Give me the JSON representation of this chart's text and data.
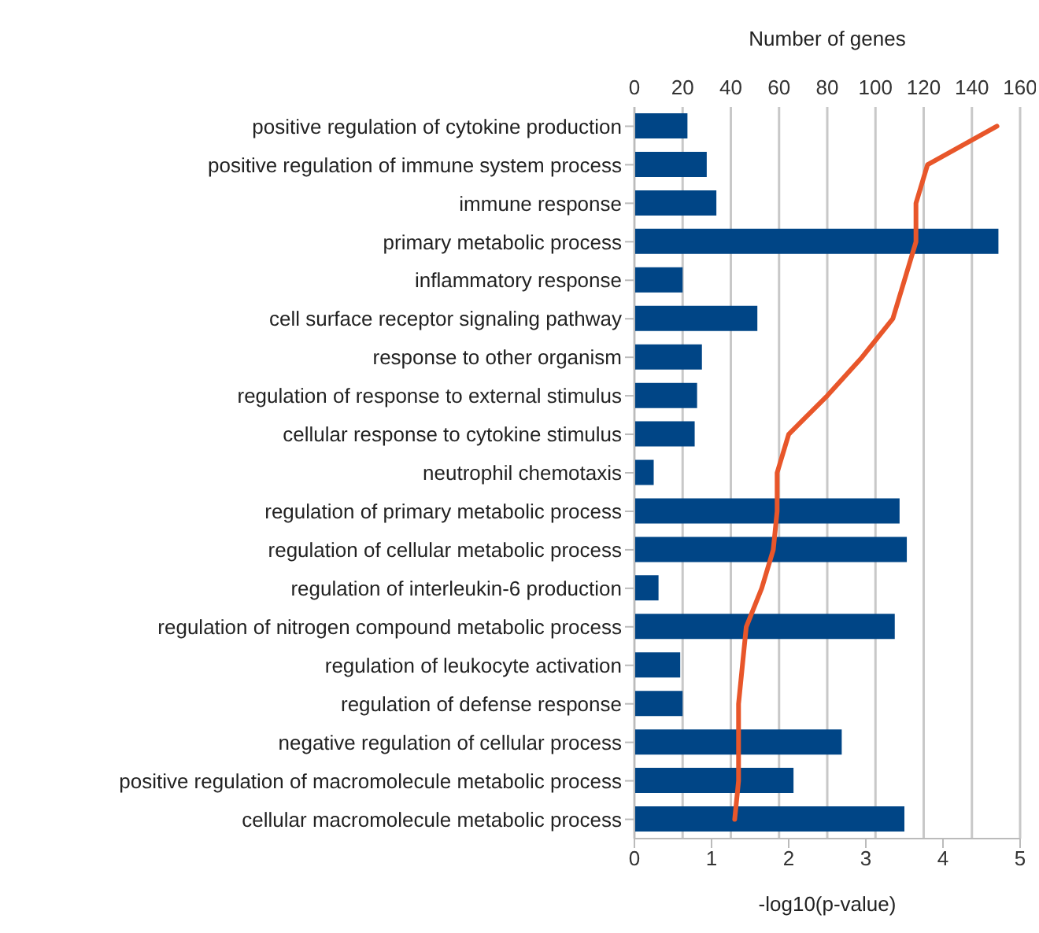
{
  "chart_data": {
    "type": "bar",
    "orientation": "horizontal",
    "xlabel": "-log10(p-value)",
    "x2label": "Number of genes",
    "categories": [
      "positive regulation of cytokine production",
      "positive regulation of immune system process",
      "immune response",
      "primary metabolic process",
      "inflammatory response",
      "cell surface receptor signaling pathway",
      "response to other organism",
      "regulation of response to external stimulus",
      "cellular response to cytokine stimulus",
      "neutrophil chemotaxis",
      "regulation of primary metabolic process",
      "regulation of cellular metabolic process",
      "regulation of interleukin-6 production",
      "regulation of nitrogen compound metabolic process",
      "regulation of leukocyte activation",
      "regulation of defense response",
      "negative regulation of cellular process",
      "positive regulation of macromolecule metabolic process",
      "cellular macromolecule metabolic process"
    ],
    "series": [
      {
        "axis": "x2",
        "color": "#004586",
        "values": [
          22,
          30,
          34,
          151,
          20,
          51,
          28,
          26,
          25,
          8,
          110,
          113,
          10,
          108,
          19,
          20,
          86,
          66,
          112
        ]
      },
      {
        "type": "line",
        "color": "#e8562a",
        "line_style": "solid",
        "marker": "none",
        "values": [
          4.7,
          3.8,
          3.65,
          3.65,
          3.5,
          3.35,
          2.95,
          2.5,
          2.0,
          1.85,
          1.85,
          1.8,
          1.65,
          1.45,
          1.4,
          1.35,
          1.35,
          1.35,
          1.3
        ]
      }
    ],
    "xlim": [
      0,
      5
    ],
    "xticks": [
      0,
      1,
      2,
      3,
      4,
      5
    ],
    "x2lim": [
      0,
      160
    ],
    "x2ticks": [
      0,
      20,
      40,
      60,
      80,
      100,
      120,
      140,
      160
    ],
    "grid": "x"
  }
}
